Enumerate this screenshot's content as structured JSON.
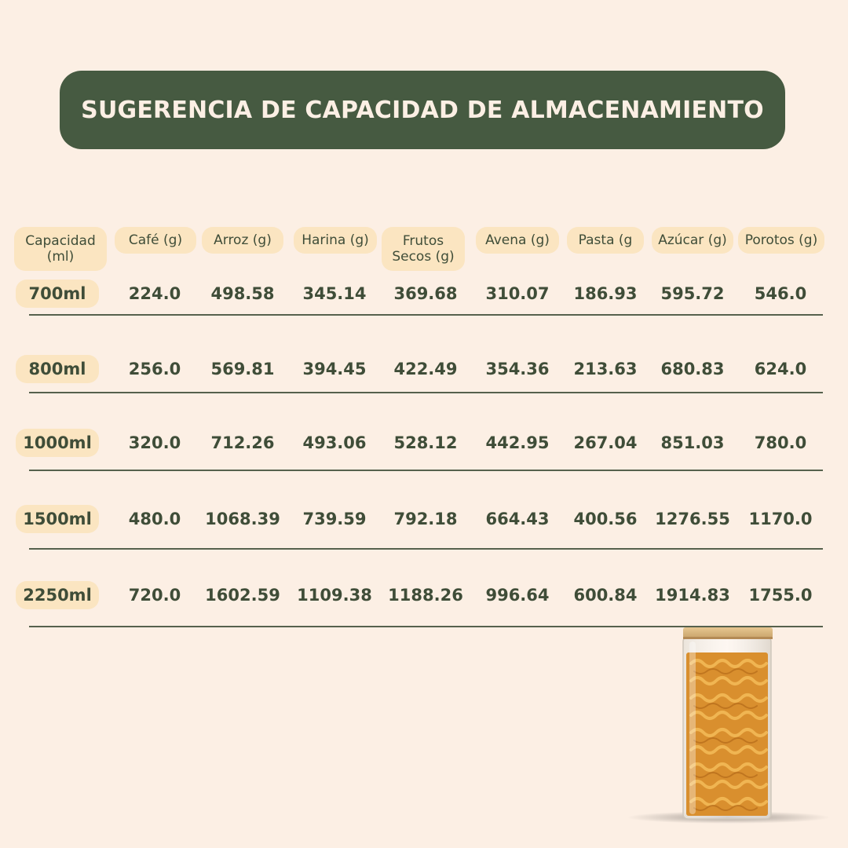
{
  "title": "SUGERENCIA DE CAPACIDAD DE ALMACENAMIENTO",
  "table": {
    "headers": [
      "Capacidad\n(ml)",
      "Café (g)",
      "Arroz (g)",
      "Harina (g)",
      "Frutos\nSecos (g)",
      "Avena (g)",
      "Pasta (g",
      "Azúcar (g)",
      "Porotos (g)"
    ],
    "rows": [
      {
        "label": "700ml",
        "values": [
          "224.0",
          "498.58",
          "345.14",
          "369.68",
          "310.07",
          "186.93",
          "595.72",
          "546.0"
        ]
      },
      {
        "label": "800ml",
        "values": [
          "256.0",
          "569.81",
          "394.45",
          "422.49",
          "354.36",
          "213.63",
          "680.83",
          "624.0"
        ]
      },
      {
        "label": "1000ml",
        "values": [
          "320.0",
          "712.26",
          "493.06",
          "528.12",
          "442.95",
          "267.04",
          "851.03",
          "780.0"
        ]
      },
      {
        "label": "1500ml",
        "values": [
          "480.0",
          "1068.39",
          "739.59",
          "792.18",
          "664.43",
          "400.56",
          "1276.55",
          "1170.0"
        ]
      },
      {
        "label": "2250ml",
        "values": [
          "720.0",
          "1602.59",
          "1109.38",
          "1188.26",
          "996.64",
          "600.84",
          "1914.83",
          "1755.0"
        ]
      }
    ]
  },
  "colors": {
    "background": "#fcefe4",
    "banner": "#465a41",
    "pill": "#fbe5c1",
    "text": "#3f4d38"
  },
  "image": "pasta-jar"
}
